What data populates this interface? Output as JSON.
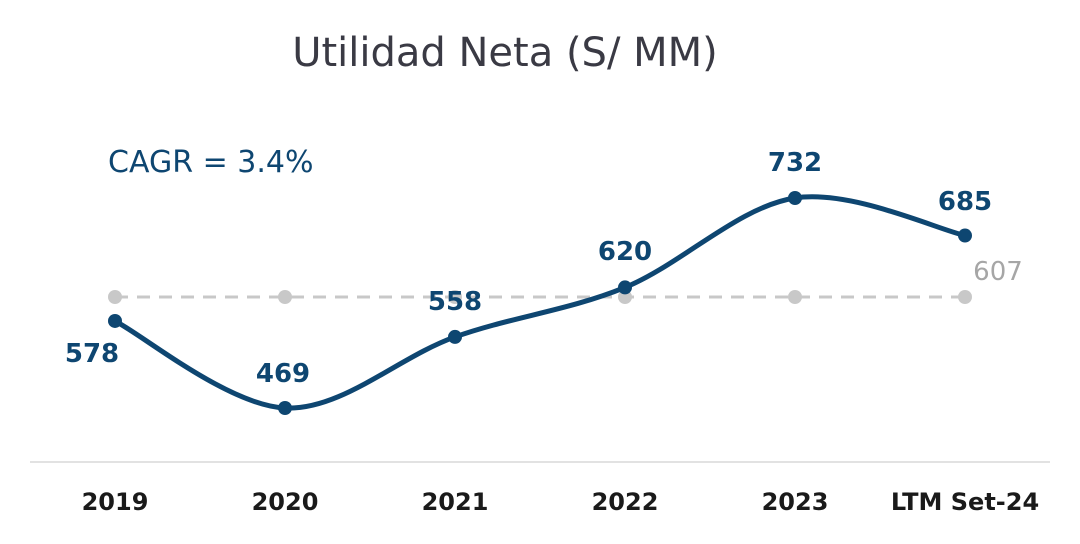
{
  "chart_data": {
    "type": "line",
    "title": "Utilidad Neta (S/ MM)",
    "annotation": "CAGR = 3.4%",
    "categories": [
      "2019",
      "2020",
      "2021",
      "2022",
      "2023",
      "LTM Set-24"
    ],
    "series": [
      {
        "values": [
          578,
          469,
          558,
          620,
          732,
          685
        ]
      }
    ],
    "average_line": {
      "value": 607,
      "style": "dashed"
    },
    "ylim": [
      400,
      760
    ],
    "grid": false,
    "colors": {
      "series": "#0e4671",
      "average": "#c8c8c8",
      "average_label": "#a6a6a6",
      "title": "#3a3a44",
      "axis_text": "#1a1a1a",
      "baseline": "#e2e2e2"
    }
  }
}
